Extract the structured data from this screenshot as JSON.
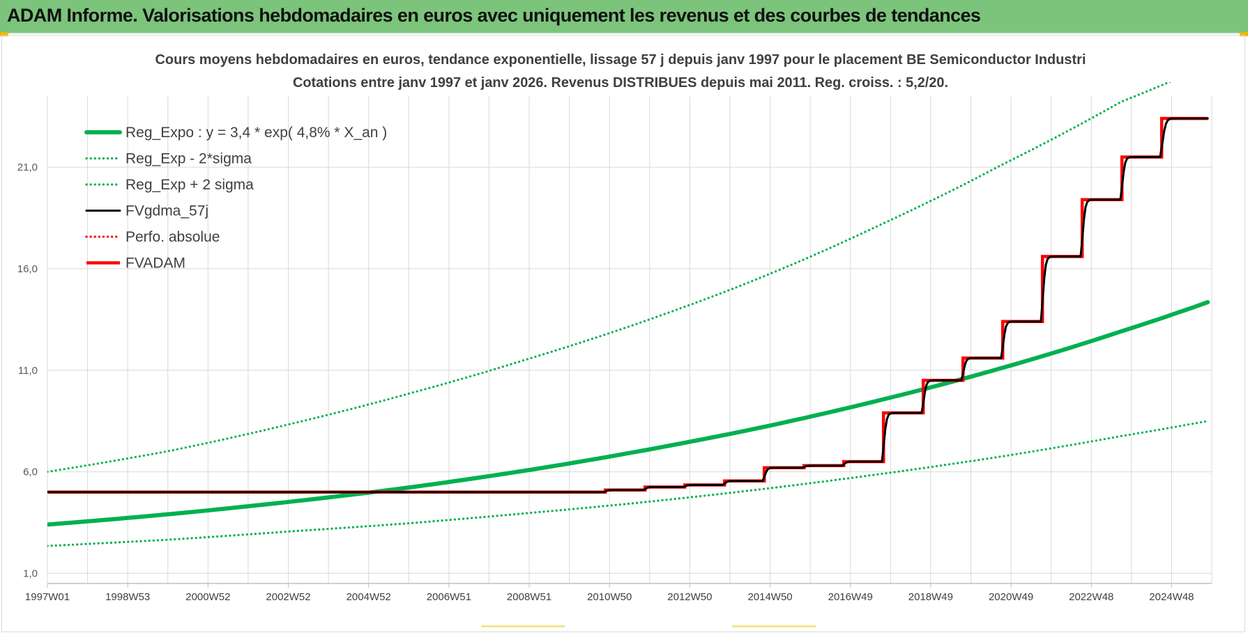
{
  "header": {
    "title": "ADAM Informe. Valorisations hebdomadaires en euros avec uniquement les revenus et des courbes de tendances"
  },
  "colors": {
    "header_bg": "#7cc47c",
    "reg_green": "#00b050",
    "fv_black": "#000000",
    "adam_red": "#ff0000",
    "grid": "#d9d9d9",
    "title_text": "#404040"
  },
  "chart_data": {
    "type": "line",
    "title": "Cours moyens hebdomadaires en euros, tendance exponentielle, lissage 57 j depuis janv 1997 pour le placement BE Semiconductor Industri",
    "subtitle": "Cotations entre janv 1997 et janv 2026. Revenus DISTRIBUES depuis mai 2011. Reg. croiss. : 5,2/20.",
    "xlabel": "",
    "ylabel": "",
    "x_tick_labels": [
      "1997W01",
      "1998W53",
      "2000W52",
      "2002W52",
      "2004W52",
      "2006W51",
      "2008W51",
      "2010W50",
      "2012W50",
      "2014W50",
      "2016W49",
      "2018W49",
      "2020W49",
      "2022W48",
      "2024W48"
    ],
    "y_tick_labels": [
      "1,0",
      "6,0",
      "11,0",
      "16,0",
      "21,0"
    ],
    "xlim": [
      1997.0,
      2026.3
    ],
    "ylim": [
      0.5,
      24.5
    ],
    "grid": true,
    "legend_position": "top-left",
    "series": [
      {
        "name": "Reg_Expo : y = 3,4 * exp( 4,8% *  X_an )",
        "style": "solid-thick",
        "color": "#00b050",
        "x": [
          1997.0,
          2000.0,
          2003.0,
          2006.0,
          2009.0,
          2012.0,
          2015.0,
          2018.0,
          2021.0,
          2024.0,
          2026.2
        ],
        "values": [
          3.4,
          3.9,
          4.5,
          5.2,
          6.05,
          7.05,
          8.2,
          9.55,
          11.1,
          12.9,
          14.35
        ]
      },
      {
        "name": "Reg_Exp - 2*sigma",
        "style": "dotted",
        "color": "#00b050",
        "x": [
          1997.0,
          2000.0,
          2003.0,
          2006.0,
          2009.0,
          2012.0,
          2015.0,
          2018.0,
          2021.0,
          2024.0,
          2026.2
        ],
        "values": [
          2.35,
          2.65,
          3.05,
          3.45,
          3.95,
          4.5,
          5.15,
          5.9,
          6.75,
          7.75,
          8.5
        ]
      },
      {
        "name": "Reg_Exp + 2 sigma",
        "style": "dotted",
        "color": "#00b050",
        "x": [
          1997.0,
          2000.0,
          2003.0,
          2006.0,
          2009.0,
          2012.0,
          2015.0,
          2018.0,
          2021.0,
          2024.0,
          2026.2
        ],
        "values": [
          6.0,
          7.0,
          8.3,
          9.8,
          11.5,
          13.4,
          15.6,
          18.2,
          21.1,
          24.2,
          26.0
        ]
      },
      {
        "name": "FVgdma_57j",
        "style": "solid",
        "color": "#000000",
        "x": [
          1997.0,
          2011.0,
          2012.0,
          2013.0,
          2014.0,
          2015.0,
          2016.0,
          2017.0,
          2018.0,
          2019.0,
          2020.0,
          2021.0,
          2022.0,
          2023.0,
          2024.0,
          2025.0,
          2026.2
        ],
        "values": [
          5.0,
          5.0,
          5.1,
          5.25,
          5.35,
          5.55,
          6.2,
          6.3,
          6.5,
          8.9,
          10.5,
          11.6,
          13.4,
          16.6,
          19.4,
          21.5,
          23.4
        ]
      },
      {
        "name": "Perfo. absolue",
        "style": "dotted",
        "color": "#ff0000",
        "x": [],
        "values": []
      },
      {
        "name": "FVADAM",
        "style": "step-thick",
        "color": "#ff0000",
        "x": [
          1997.0,
          2011.0,
          2012.0,
          2013.0,
          2014.0,
          2015.0,
          2016.0,
          2017.0,
          2018.0,
          2019.0,
          2020.0,
          2021.0,
          2022.0,
          2023.0,
          2024.0,
          2025.0,
          2026.2
        ],
        "values": [
          5.0,
          5.0,
          5.1,
          5.25,
          5.35,
          5.55,
          6.2,
          6.3,
          6.5,
          8.9,
          10.5,
          11.6,
          13.4,
          16.6,
          19.4,
          21.5,
          23.4
        ]
      }
    ]
  }
}
